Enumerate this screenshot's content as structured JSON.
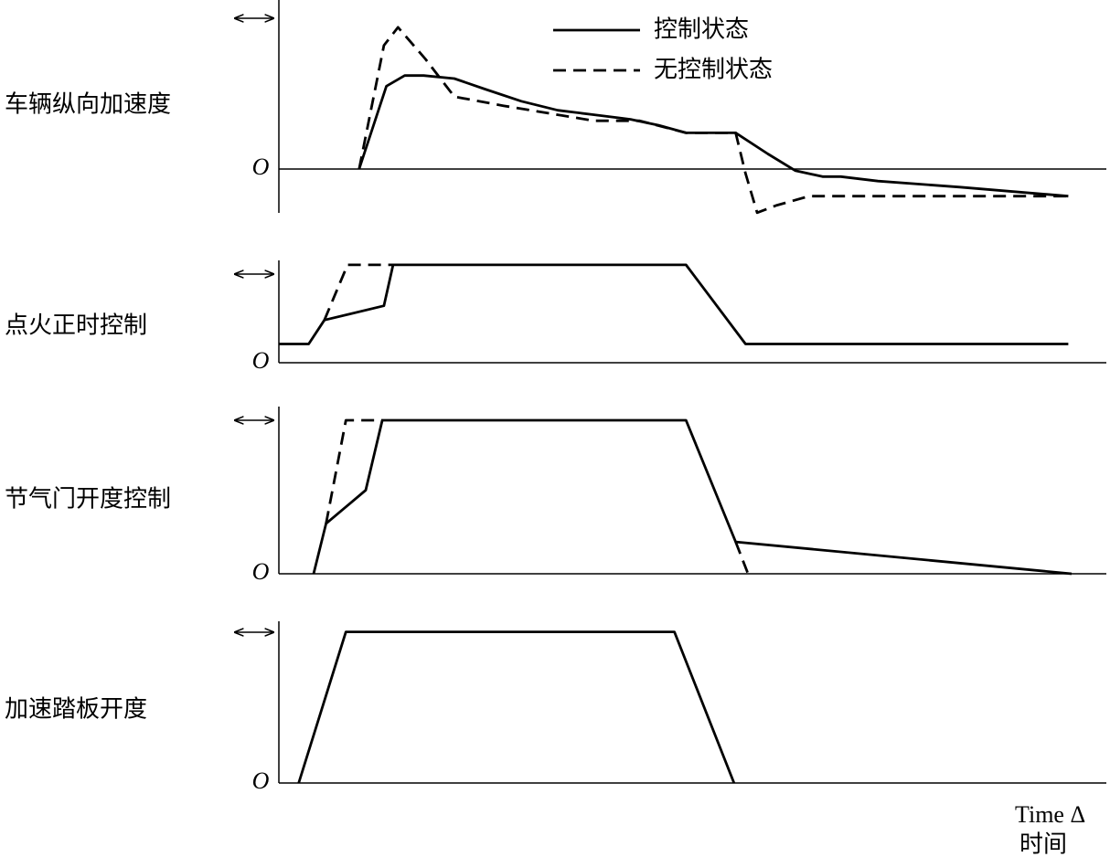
{
  "chart_data": [
    {
      "type": "line",
      "ylabel": "车辆纵向加速度",
      "xlim": [
        0,
        100
      ],
      "ylim": [
        -3,
        10
      ],
      "yticks": [
        {
          "value": 0,
          "label": "O"
        }
      ],
      "series": [
        {
          "name": "控制状态",
          "color": "#000000",
          "dash": false,
          "x": [
            9.7,
            13.0,
            15.2,
            17.5,
            21.2,
            24.9,
            29.3,
            33.7,
            38.1,
            42.5,
            45.9,
            49.2,
            55.2,
            59.1,
            62.4,
            65.7,
            67.9,
            72.4,
            82.3,
            95.4
          ],
          "values": [
            0,
            5.5,
            6.2,
            6.2,
            6.0,
            5.3,
            4.5,
            3.9,
            3.6,
            3.3,
            2.9,
            2.4,
            2.4,
            1.0,
            -0.1,
            -0.5,
            -0.5,
            -0.8,
            -1.2,
            -1.8
          ]
        },
        {
          "name": "无控制状态",
          "color": "#000000",
          "dash": true,
          "x": [
            9.7,
            12.7,
            14.4,
            17.7,
            21.2,
            27.1,
            38.1,
            43.6,
            49.2,
            55.2,
            56.4,
            57.8,
            60.2,
            64.1,
            95.4
          ],
          "values": [
            0,
            8.2,
            9.4,
            7.3,
            4.8,
            4.2,
            3.2,
            3.2,
            2.4,
            2.4,
            -0.3,
            -2.9,
            -2.4,
            -1.8,
            -1.8
          ]
        }
      ]
    },
    {
      "type": "line",
      "ylabel": "点火正时控制",
      "xlim": [
        0,
        100
      ],
      "ylim": [
        0,
        11.5
      ],
      "yticks": [
        {
          "value": 0,
          "label": "O"
        }
      ],
      "series": [
        {
          "color": "#000000",
          "dash": false,
          "x": [
            0,
            3.6,
            5.5,
            12.7,
            13.8,
            49.2,
            56.4,
            95.4
          ],
          "values": [
            2.1,
            2.1,
            4.8,
            6.4,
            11.0,
            11.0,
            2.1,
            2.1
          ]
        },
        {
          "color": "#000000",
          "dash": true,
          "x": [
            5.5,
            8.3,
            13.8
          ],
          "values": [
            4.8,
            11.0,
            11.0
          ]
        }
      ]
    },
    {
      "type": "line",
      "ylabel": "节气门开度控制",
      "xlim": [
        0,
        100
      ],
      "ylim": [
        0,
        11
      ],
      "yticks": [
        {
          "value": 0,
          "label": "O"
        }
      ],
      "series": [
        {
          "color": "#000000",
          "dash": false,
          "x": [
            4.2,
            5.7,
            10.5,
            12.5,
            49.2,
            55.2,
            95.8
          ],
          "values": [
            0,
            3.3,
            5.5,
            10.1,
            10.1,
            2.1,
            0
          ]
        },
        {
          "color": "#000000",
          "dash": true,
          "x": [
            5.7,
            8.1,
            12.5,
            50,
            55.2,
            56.7
          ],
          "values": [
            3.3,
            10.1,
            10.1,
            null,
            2.1,
            0
          ]
        }
      ]
    },
    {
      "type": "line",
      "ylabel": "加速踏板开度",
      "xlim": [
        0,
        100
      ],
      "ylim": [
        0,
        10.7
      ],
      "yticks": [
        {
          "value": 0,
          "label": "O"
        }
      ],
      "xlabel": [
        "Time Δ",
        "时间"
      ],
      "series": [
        {
          "color": "#000000",
          "dash": false,
          "x": [
            2.4,
            8.1,
            47.8,
            55.0
          ],
          "values": [
            0,
            10,
            10,
            0
          ]
        }
      ]
    }
  ]
}
